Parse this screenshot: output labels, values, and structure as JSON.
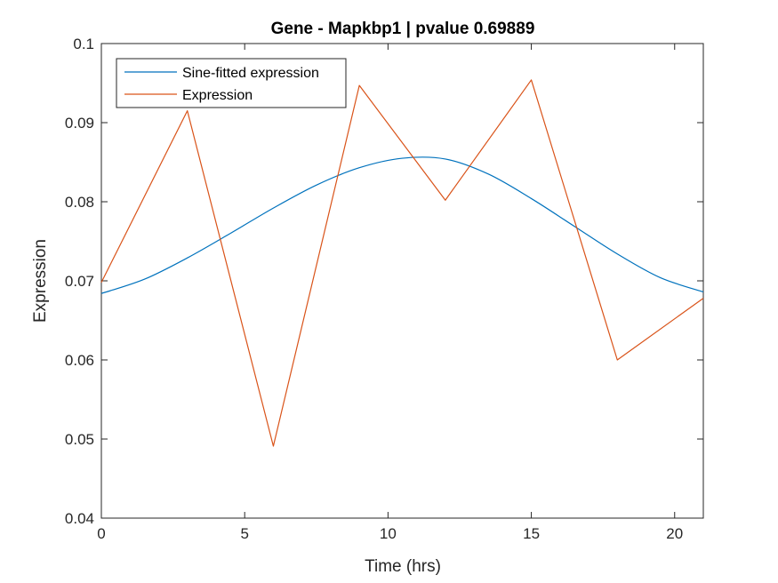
{
  "chart_data": {
    "type": "line",
    "title": "Gene - Mapkbp1 | pvalue 0.69889",
    "xlabel": "Time (hrs)",
    "ylabel": "Expression",
    "xlim": [
      0,
      21
    ],
    "ylim": [
      0.04,
      0.1
    ],
    "xticks": [
      0,
      5,
      10,
      15,
      20
    ],
    "xtick_labels": [
      "0",
      "5",
      "10",
      "15",
      "20"
    ],
    "yticks": [
      0.04,
      0.05,
      0.06,
      0.07,
      0.08,
      0.09,
      0.1
    ],
    "ytick_labels": [
      "0.04",
      "0.05",
      "0.06",
      "0.07",
      "0.08",
      "0.09",
      "0.1"
    ],
    "grid": false,
    "legend_position": "top-left",
    "series": [
      {
        "name": "Sine-fitted expression",
        "color": "#0072BD",
        "x": [
          0,
          1.5,
          3,
          4.5,
          6,
          7.5,
          9,
          10.5,
          12,
          13.5,
          15,
          16.5,
          18,
          19.5,
          21
        ],
        "y": [
          0.0684,
          0.0702,
          0.0729,
          0.076,
          0.0792,
          0.0821,
          0.0843,
          0.0855,
          0.0854,
          0.0835,
          0.0804,
          0.0769,
          0.0734,
          0.0704,
          0.0686
        ]
      },
      {
        "name": "Expression",
        "color": "#D95319",
        "x": [
          0,
          3,
          6,
          9,
          12,
          15,
          18,
          21
        ],
        "y": [
          0.0698,
          0.0915,
          0.0491,
          0.0947,
          0.0802,
          0.0954,
          0.06,
          0.0678
        ]
      }
    ]
  }
}
